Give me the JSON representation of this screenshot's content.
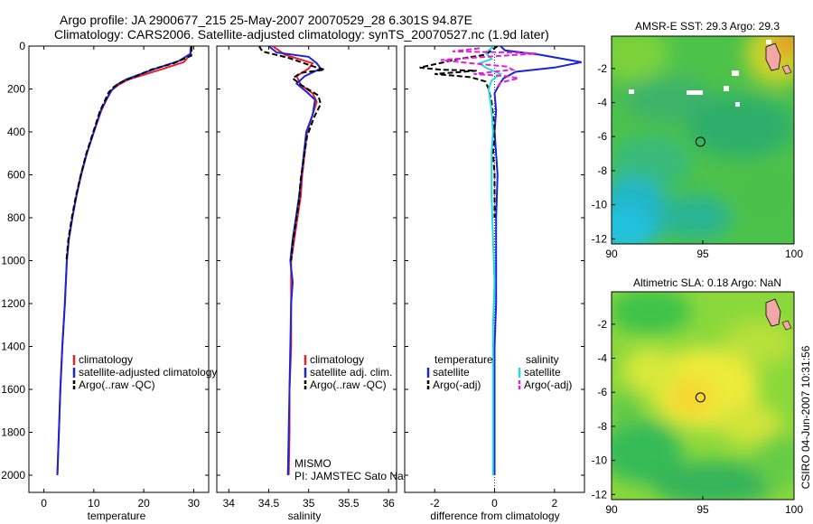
{
  "title_line1": "Argo profile: JA 2900677_215 25-May-2007 20070529_28 6.301S 94.87E",
  "title_line2": "Climatology: CARS2006. Satellite-adjusted climatology: synTS_20070527.nc (1.9d later)",
  "side_label": "CSIRO 04-Jun-2007 10:31:56",
  "colors": {
    "clim": "#e8202a",
    "sat": "#1a24d8",
    "argo": "#000000",
    "cyan": "#28d8e0",
    "magenta": "#e020d8"
  },
  "chart_data": [
    {
      "type": "line",
      "id": "temperature",
      "xlabel": "temperature",
      "xlim": [
        -3,
        33
      ],
      "ylim": [
        2080,
        0
      ],
      "xticks": [
        0,
        10,
        20,
        30
      ],
      "yticks": [
        0,
        200,
        400,
        600,
        800,
        1000,
        1200,
        1400,
        1600,
        1800,
        2000
      ],
      "legend": [
        "climatology",
        "satellite-adjusted climatology",
        "Argo(..raw -QC)"
      ],
      "series": [
        {
          "name": "climatology",
          "color": "clim",
          "dash": false,
          "points": [
            [
              29.4,
              0
            ],
            [
              29.3,
              40
            ],
            [
              28.0,
              75
            ],
            [
              24.0,
              105
            ],
            [
              20.5,
              130
            ],
            [
              17.0,
              155
            ],
            [
              15.0,
              180
            ],
            [
              13.6,
              205
            ],
            [
              12.5,
              250
            ],
            [
              11.5,
              300
            ],
            [
              10.0,
              400
            ],
            [
              8.6,
              500
            ],
            [
              7.5,
              600
            ],
            [
              6.5,
              700
            ],
            [
              5.7,
              800
            ],
            [
              5.0,
              900
            ],
            [
              4.6,
              1000
            ],
            [
              4.2,
              1200
            ],
            [
              3.7,
              1400
            ],
            [
              3.3,
              1600
            ],
            [
              3.0,
              1800
            ],
            [
              2.7,
              2000
            ]
          ]
        },
        {
          "name": "satellite-adjusted climatology",
          "color": "sat",
          "dash": false,
          "points": [
            [
              29.5,
              0
            ],
            [
              29.4,
              35
            ],
            [
              27.0,
              70
            ],
            [
              23.0,
              100
            ],
            [
              20.0,
              125
            ],
            [
              16.5,
              155
            ],
            [
              14.6,
              180
            ],
            [
              13.4,
              210
            ],
            [
              12.4,
              255
            ],
            [
              11.4,
              300
            ],
            [
              10.0,
              400
            ],
            [
              8.6,
              500
            ],
            [
              7.4,
              600
            ],
            [
              6.5,
              700
            ],
            [
              5.7,
              800
            ],
            [
              5.0,
              900
            ],
            [
              4.6,
              1000
            ],
            [
              4.2,
              1200
            ],
            [
              3.7,
              1400
            ],
            [
              3.3,
              1600
            ],
            [
              3.0,
              1800
            ],
            [
              2.7,
              2000
            ]
          ]
        },
        {
          "name": "Argo(..raw -QC)",
          "color": "argo",
          "dash": true,
          "points": [
            [
              29.6,
              0
            ],
            [
              29.5,
              45
            ],
            [
              26.0,
              80
            ],
            [
              21.5,
              110
            ],
            [
              18.5,
              140
            ],
            [
              15.8,
              165
            ],
            [
              14.0,
              190
            ],
            [
              13.0,
              215
            ],
            [
              12.2,
              255
            ],
            [
              11.2,
              305
            ],
            [
              9.9,
              400
            ],
            [
              8.5,
              500
            ],
            [
              7.4,
              600
            ],
            [
              6.4,
              700
            ],
            [
              5.6,
              800
            ],
            [
              4.9,
              900
            ],
            [
              4.5,
              1000
            ]
          ]
        }
      ]
    },
    {
      "type": "line",
      "id": "salinity",
      "xlabel": "salinity",
      "xlim": [
        33.85,
        36.1
      ],
      "ylim": [
        2080,
        0
      ],
      "xticks": [
        34,
        34.5,
        35,
        35.5,
        36
      ],
      "yticks": [
        0,
        200,
        400,
        600,
        800,
        1000,
        1200,
        1400,
        1600,
        1800,
        2000
      ],
      "legend": [
        "climatology",
        "satellite adj. clim.",
        "Argo(..raw -QC)"
      ],
      "annotations": [
        "MISMO",
        "PI: JAMSTEC Sato Naoki"
      ],
      "series": [
        {
          "name": "climatology",
          "color": "clim",
          "dash": false,
          "points": [
            [
              34.55,
              0
            ],
            [
              34.7,
              40
            ],
            [
              35.05,
              80
            ],
            [
              35.0,
              105
            ],
            [
              34.85,
              140
            ],
            [
              34.9,
              180
            ],
            [
              35.05,
              220
            ],
            [
              35.1,
              260
            ],
            [
              35.05,
              320
            ],
            [
              34.98,
              400
            ],
            [
              34.95,
              500
            ],
            [
              34.92,
              600
            ],
            [
              34.9,
              700
            ],
            [
              34.86,
              800
            ],
            [
              34.82,
              900
            ],
            [
              34.78,
              1000
            ],
            [
              34.78,
              1100
            ],
            [
              34.78,
              1200
            ],
            [
              34.78,
              1400
            ],
            [
              34.76,
              1600
            ],
            [
              34.76,
              1800
            ],
            [
              34.75,
              2000
            ]
          ]
        },
        {
          "name": "satellite adj. clim.",
          "color": "sat",
          "dash": false,
          "points": [
            [
              34.5,
              0
            ],
            [
              34.6,
              30
            ],
            [
              35.0,
              50
            ],
            [
              35.1,
              80
            ],
            [
              35.15,
              105
            ],
            [
              34.95,
              140
            ],
            [
              34.85,
              175
            ],
            [
              34.98,
              215
            ],
            [
              35.08,
              250
            ],
            [
              35.05,
              320
            ],
            [
              34.97,
              400
            ],
            [
              34.94,
              500
            ],
            [
              34.91,
              600
            ],
            [
              34.88,
              700
            ],
            [
              34.84,
              800
            ],
            [
              34.8,
              900
            ],
            [
              34.77,
              1000
            ],
            [
              34.8,
              1100
            ],
            [
              34.78,
              1200
            ],
            [
              34.77,
              1400
            ],
            [
              34.76,
              1600
            ],
            [
              34.75,
              1800
            ],
            [
              34.74,
              2000
            ]
          ]
        },
        {
          "name": "Argo(..raw -QC)",
          "color": "argo",
          "dash": true,
          "points": [
            [
              34.38,
              0
            ],
            [
              34.42,
              25
            ],
            [
              34.75,
              55
            ],
            [
              35.1,
              100
            ],
            [
              35.2,
              110
            ],
            [
              34.9,
              125
            ],
            [
              34.8,
              150
            ],
            [
              34.9,
              180
            ],
            [
              35.12,
              230
            ],
            [
              35.15,
              270
            ],
            [
              35.07,
              330
            ],
            [
              34.98,
              420
            ],
            [
              34.94,
              520
            ],
            [
              34.9,
              620
            ],
            [
              34.88,
              720
            ],
            [
              34.84,
              820
            ],
            [
              34.8,
              920
            ],
            [
              34.78,
              1000
            ]
          ]
        }
      ]
    },
    {
      "type": "line",
      "id": "difference",
      "xlabel": "difference from climatology",
      "xlim": [
        -3.0,
        3.0
      ],
      "ylim": [
        2080,
        0
      ],
      "xticks": [
        -2,
        0,
        2
      ],
      "yticks": [
        0,
        200,
        400,
        600,
        800,
        1000,
        1200,
        1400,
        1600,
        1800,
        2000
      ],
      "legend_left_title": "temperature",
      "legend_left": [
        "satellite",
        "Argo(-adj)"
      ],
      "legend_right_title": "salinity",
      "legend_right": [
        "satellite",
        "Argo(-adj)"
      ],
      "series": [
        {
          "name": "temperature satellite",
          "color": "sat",
          "dash": false,
          "points": [
            [
              0.2,
              0
            ],
            [
              0.35,
              20
            ],
            [
              1.5,
              40
            ],
            [
              2.9,
              75
            ],
            [
              2.0,
              100
            ],
            [
              0.7,
              120
            ],
            [
              0.3,
              150
            ],
            [
              0.15,
              180
            ],
            [
              0.0,
              220
            ],
            [
              0.05,
              300
            ],
            [
              0.0,
              400
            ],
            [
              0.1,
              600
            ],
            [
              0.05,
              800
            ],
            [
              0.05,
              1000
            ],
            [
              0.05,
              1200
            ],
            [
              0.0,
              1400
            ],
            [
              0.0,
              1600
            ],
            [
              0.0,
              1800
            ],
            [
              0.0,
              2000
            ]
          ]
        },
        {
          "name": "temperature Argo(-adj)",
          "color": "argo",
          "dash": true,
          "points": [
            [
              0.1,
              0
            ],
            [
              -0.3,
              40
            ],
            [
              -1.2,
              60
            ],
            [
              -2.5,
              100
            ],
            [
              -1.8,
              110
            ],
            [
              -0.6,
              115
            ],
            [
              -2.0,
              130
            ],
            [
              -0.8,
              145
            ],
            [
              -0.3,
              165
            ],
            [
              -0.2,
              200
            ],
            [
              -0.1,
              260
            ],
            [
              -0.05,
              320
            ],
            [
              0.0,
              400
            ],
            [
              -0.05,
              500
            ],
            [
              0.0,
              600
            ],
            [
              0.0,
              800
            ]
          ]
        },
        {
          "name": "salinity satellite",
          "color": "cyan",
          "dash": false,
          "points": [
            [
              0.0,
              0
            ],
            [
              -0.3,
              30
            ],
            [
              -0.1,
              60
            ],
            [
              -0.5,
              80
            ],
            [
              -0.3,
              100
            ],
            [
              0.2,
              130
            ],
            [
              -0.1,
              160
            ],
            [
              -0.2,
              200
            ],
            [
              -0.1,
              300
            ],
            [
              -0.05,
              400
            ],
            [
              -0.1,
              500
            ],
            [
              -0.1,
              700
            ],
            [
              -0.05,
              900
            ],
            [
              0.0,
              1100
            ],
            [
              -0.05,
              1300
            ],
            [
              -0.05,
              1500
            ],
            [
              -0.05,
              1700
            ],
            [
              -0.05,
              2000
            ]
          ]
        },
        {
          "name": "salinity Argo(-adj)",
          "color": "magenta",
          "dash": true,
          "points": [
            [
              -0.5,
              10
            ],
            [
              -1.4,
              25
            ],
            [
              0.6,
              30
            ],
            [
              1.4,
              35
            ],
            [
              -0.3,
              50
            ],
            [
              -1.8,
              65
            ],
            [
              -0.8,
              80
            ],
            [
              0.4,
              95
            ],
            [
              0.6,
              110
            ],
            [
              -0.7,
              130
            ],
            [
              0.4,
              140
            ],
            [
              0.8,
              150
            ],
            [
              0.2,
              170
            ],
            [
              0.1,
              200
            ]
          ]
        }
      ]
    }
  ],
  "maps": [
    {
      "id": "sst",
      "title": "AMSR-E SST: 29.3 Argo: 29.3",
      "xticks": [
        90,
        95,
        100
      ],
      "yticks": [
        -2,
        -4,
        -6,
        -8,
        -10,
        -12
      ],
      "xlim": [
        90,
        100
      ],
      "ylim": [
        -12.3,
        -0.1
      ],
      "argo_lon": 94.87,
      "argo_lat": -6.301
    },
    {
      "id": "sla",
      "title": "Altimetric SLA: 0.18 Argo: NaN",
      "xticks": [
        90,
        95,
        100
      ],
      "yticks": [
        -2,
        -4,
        -6,
        -8,
        -10,
        -12
      ],
      "xlim": [
        90,
        100
      ],
      "ylim": [
        -12.3,
        -0.1
      ],
      "argo_lon": 94.87,
      "argo_lat": -6.301
    }
  ]
}
